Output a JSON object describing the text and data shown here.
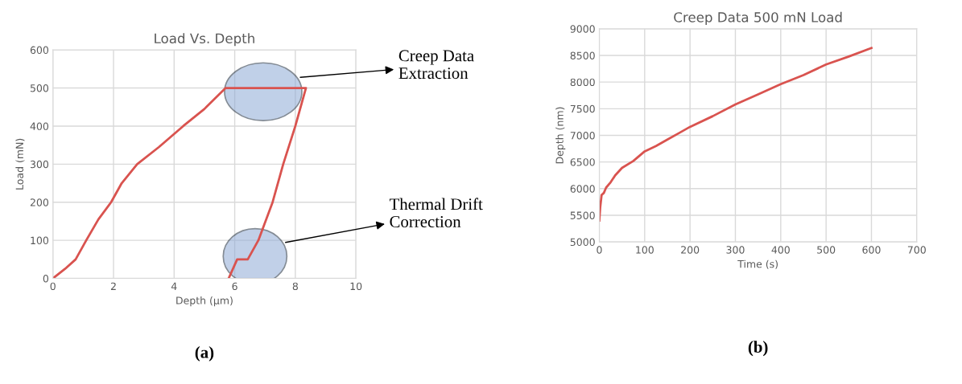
{
  "chart_data": [
    {
      "type": "line",
      "title": "Load Vs. Depth",
      "xlabel": "Depth (µm)",
      "ylabel": "Load (mN)",
      "xlim": [
        0,
        10
      ],
      "xticks": [
        0,
        2,
        4,
        6,
        8,
        10
      ],
      "ylim": [
        0,
        600
      ],
      "yticks": [
        0,
        100,
        200,
        300,
        400,
        500,
        600
      ],
      "grid": true,
      "marker": "none",
      "line_style": "solid",
      "series": [
        {
          "color": "#d9534f",
          "x": [
            0,
            0.4,
            0.75,
            1.1,
            1.5,
            1.92,
            2.27,
            2.78,
            3.5,
            4.3,
            5.0,
            5.7,
            8.35,
            8.0,
            7.6,
            7.25,
            6.78,
            6.43,
            6.08,
            5.8
          ],
          "values": [
            0,
            25,
            50,
            100,
            155,
            200,
            250,
            300,
            345,
            400,
            445,
            500,
            500,
            400,
            300,
            200,
            100,
            50,
            50,
            0
          ]
        }
      ],
      "annotations": [
        "Creep Data\nExtraction",
        "Thermal Drift\nCorrection",
        "(a)"
      ]
    },
    {
      "type": "line",
      "title": "Creep Data 500 mN Load",
      "xlabel": "Time (s)",
      "ylabel": "Depth (nm)",
      "xlim": [
        0,
        700
      ],
      "xticks": [
        0,
        100,
        200,
        300,
        400,
        500,
        600,
        700
      ],
      "ylim": [
        5000,
        9000
      ],
      "yticks": [
        5000,
        5500,
        6000,
        6500,
        7000,
        7500,
        8000,
        8500,
        9000
      ],
      "grid": true,
      "marker": "none",
      "line_style": "solid",
      "series": [
        {
          "color": "#d9534f",
          "x": [
            0,
            2,
            5,
            10,
            15,
            25,
            35,
            50,
            75,
            100,
            125,
            150,
            175,
            200,
            250,
            300,
            350,
            400,
            450,
            500,
            550,
            600
          ],
          "values": [
            5400,
            5650,
            5880,
            5920,
            6020,
            6120,
            6250,
            6390,
            6520,
            6700,
            6800,
            6920,
            7040,
            7160,
            7360,
            7580,
            7770,
            7960,
            8130,
            8330,
            8480,
            8640
          ]
        }
      ],
      "annotations": [
        "(b)"
      ]
    }
  ]
}
